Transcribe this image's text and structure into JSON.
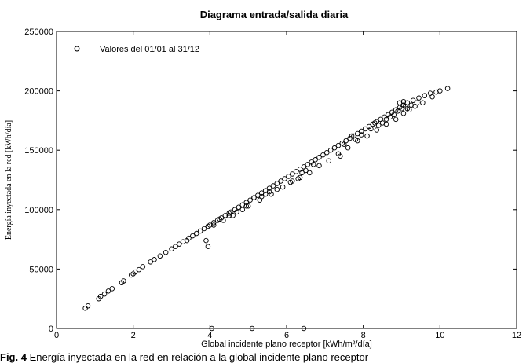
{
  "chart_data": {
    "type": "scatter",
    "title": "Diagrama entrada/salida diaria",
    "xlabel": "Global incidente plano receptor [kWh/m²/día]",
    "ylabel": "Energía inyectada en la red [kWh/día]",
    "xlim": [
      0,
      12
    ],
    "ylim": [
      0,
      250000
    ],
    "x_ticks": [
      "0",
      "2",
      "4",
      "6",
      "8",
      "10",
      "12"
    ],
    "y_ticks": [
      "0",
      "50000",
      "100000",
      "150000",
      "200000",
      "250000"
    ],
    "grid": false,
    "legend_position": "top-left",
    "series": [
      {
        "name": "Valores del 01/01 al 31/12",
        "marker": "open-circle",
        "points": [
          [
            0.75,
            17000
          ],
          [
            0.82,
            19000
          ],
          [
            1.1,
            25000
          ],
          [
            1.15,
            27000
          ],
          [
            1.25,
            29000
          ],
          [
            1.35,
            31500
          ],
          [
            1.45,
            33500
          ],
          [
            1.7,
            38500
          ],
          [
            1.75,
            40000
          ],
          [
            1.95,
            45000
          ],
          [
            2.0,
            46000
          ],
          [
            2.05,
            47500
          ],
          [
            2.15,
            49500
          ],
          [
            2.25,
            52000
          ],
          [
            2.45,
            56000
          ],
          [
            2.55,
            58000
          ],
          [
            2.7,
            61000
          ],
          [
            2.85,
            64000
          ],
          [
            3.0,
            67000
          ],
          [
            3.1,
            69000
          ],
          [
            3.2,
            71000
          ],
          [
            3.3,
            73000
          ],
          [
            3.45,
            76000
          ],
          [
            3.55,
            78000
          ],
          [
            3.65,
            80000
          ],
          [
            3.75,
            82000
          ],
          [
            3.85,
            84000
          ],
          [
            3.95,
            86000
          ],
          [
            4.0,
            87000
          ],
          [
            4.1,
            89000
          ],
          [
            4.2,
            91000
          ],
          [
            4.3,
            93000
          ],
          [
            4.4,
            95000
          ],
          [
            4.5,
            97000
          ],
          [
            4.55,
            98000
          ],
          [
            4.65,
            100000
          ],
          [
            4.75,
            102000
          ],
          [
            4.85,
            104000
          ],
          [
            4.95,
            106000
          ],
          [
            5.05,
            108000
          ],
          [
            5.15,
            110000
          ],
          [
            5.25,
            112000
          ],
          [
            5.35,
            114000
          ],
          [
            5.45,
            116000
          ],
          [
            5.55,
            118000
          ],
          [
            5.65,
            120000
          ],
          [
            5.75,
            122000
          ],
          [
            5.85,
            124000
          ],
          [
            5.95,
            126000
          ],
          [
            6.05,
            128000
          ],
          [
            6.15,
            130000
          ],
          [
            6.25,
            132000
          ],
          [
            6.35,
            134000
          ],
          [
            6.45,
            136000
          ],
          [
            6.55,
            138000
          ],
          [
            6.65,
            140000
          ],
          [
            6.75,
            142000
          ],
          [
            6.85,
            144000
          ],
          [
            6.95,
            146000
          ],
          [
            7.05,
            148000
          ],
          [
            7.15,
            150000
          ],
          [
            7.25,
            152000
          ],
          [
            7.35,
            154000
          ],
          [
            7.45,
            156000
          ],
          [
            7.55,
            158000
          ],
          [
            7.65,
            160000
          ],
          [
            7.75,
            162000
          ],
          [
            7.85,
            164000
          ],
          [
            7.95,
            166000
          ],
          [
            8.05,
            168000
          ],
          [
            8.15,
            170000
          ],
          [
            8.25,
            172000
          ],
          [
            8.35,
            174000
          ],
          [
            8.45,
            176000
          ],
          [
            8.55,
            178000
          ],
          [
            8.65,
            180000
          ],
          [
            8.75,
            182000
          ],
          [
            8.85,
            184000
          ],
          [
            8.95,
            186000
          ],
          [
            9.05,
            188000
          ],
          [
            9.15,
            190000
          ],
          [
            9.3,
            192000
          ],
          [
            9.45,
            194000
          ],
          [
            9.6,
            196000
          ],
          [
            9.75,
            198000
          ],
          [
            9.9,
            199000
          ],
          [
            10.0,
            200000
          ],
          [
            10.2,
            202000
          ],
          [
            3.4,
            74000
          ],
          [
            4.1,
            87000
          ],
          [
            4.35,
            91000
          ],
          [
            4.6,
            95000
          ],
          [
            4.95,
            103000
          ],
          [
            5.3,
            108000
          ],
          [
            5.6,
            113000
          ],
          [
            5.9,
            119000
          ],
          [
            6.1,
            123000
          ],
          [
            6.35,
            127000
          ],
          [
            6.6,
            131000
          ],
          [
            6.85,
            137000
          ],
          [
            7.1,
            141000
          ],
          [
            7.35,
            147000
          ],
          [
            7.6,
            152000
          ],
          [
            7.85,
            158000
          ],
          [
            8.1,
            162000
          ],
          [
            8.35,
            167000
          ],
          [
            8.6,
            172000
          ],
          [
            8.85,
            176000
          ],
          [
            9.05,
            181000
          ],
          [
            9.2,
            184000
          ],
          [
            9.35,
            187000
          ],
          [
            9.55,
            190000
          ],
          [
            9.8,
            195000
          ],
          [
            7.4,
            145000
          ],
          [
            7.5,
            155000
          ],
          [
            7.7,
            162000
          ],
          [
            7.8,
            159000
          ],
          [
            7.95,
            163000
          ],
          [
            8.2,
            168000
          ],
          [
            8.4,
            171000
          ],
          [
            8.5,
            173000
          ],
          [
            8.7,
            178000
          ],
          [
            8.8,
            180000
          ],
          [
            8.9,
            183000
          ],
          [
            9.0,
            185000
          ],
          [
            9.1,
            187000
          ],
          [
            9.25,
            188000
          ],
          [
            9.4,
            190000
          ],
          [
            8.95,
            190000
          ],
          [
            9.05,
            191000
          ],
          [
            9.15,
            185000
          ],
          [
            8.6,
            176000
          ],
          [
            8.3,
            173000
          ],
          [
            6.15,
            124000
          ],
          [
            6.4,
            131000
          ],
          [
            6.5,
            133000
          ],
          [
            6.7,
            138000
          ],
          [
            6.3,
            126000
          ],
          [
            5.15,
            110000
          ],
          [
            5.35,
            111000
          ],
          [
            5.55,
            115000
          ],
          [
            5.75,
            117000
          ],
          [
            5.45,
            113000
          ],
          [
            4.7,
            98000
          ],
          [
            4.85,
            100000
          ],
          [
            5.0,
            103000
          ],
          [
            4.5,
            95000
          ],
          [
            4.25,
            92000
          ],
          [
            3.9,
            74000
          ],
          [
            3.95,
            69000
          ],
          [
            4.05,
            0
          ],
          [
            5.1,
            0
          ],
          [
            6.45,
            0
          ]
        ]
      }
    ]
  },
  "caption": {
    "label": "Fig. 4",
    "text": " Energía inyectada en la red en relación a la global incidente plano receptor"
  }
}
